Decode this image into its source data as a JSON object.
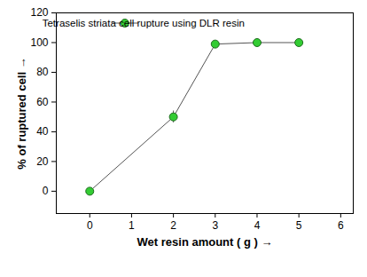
{
  "chart_data": {
    "type": "line",
    "x_label": "Wet resin amount ( g )",
    "y_label": "% of ruptured cell",
    "series": [
      {
        "name": "Tetraselis striata cell rupture using DLR resin",
        "color": "#33cc33",
        "marker": "circle",
        "line_style": "solid",
        "x": [
          0,
          2,
          3,
          4,
          5
        ],
        "values": [
          0,
          50,
          99,
          100,
          100
        ],
        "error": [
          0,
          4,
          0,
          0,
          0
        ]
      }
    ],
    "xlim": [
      -0.8,
      6.3
    ],
    "xticks": [
      0,
      1,
      2,
      3,
      4,
      5,
      6
    ],
    "ylim": [
      -15,
      120
    ],
    "yticks": [
      0,
      20,
      40,
      60,
      80,
      100,
      120
    ],
    "grid": false,
    "legend": "top-right"
  }
}
